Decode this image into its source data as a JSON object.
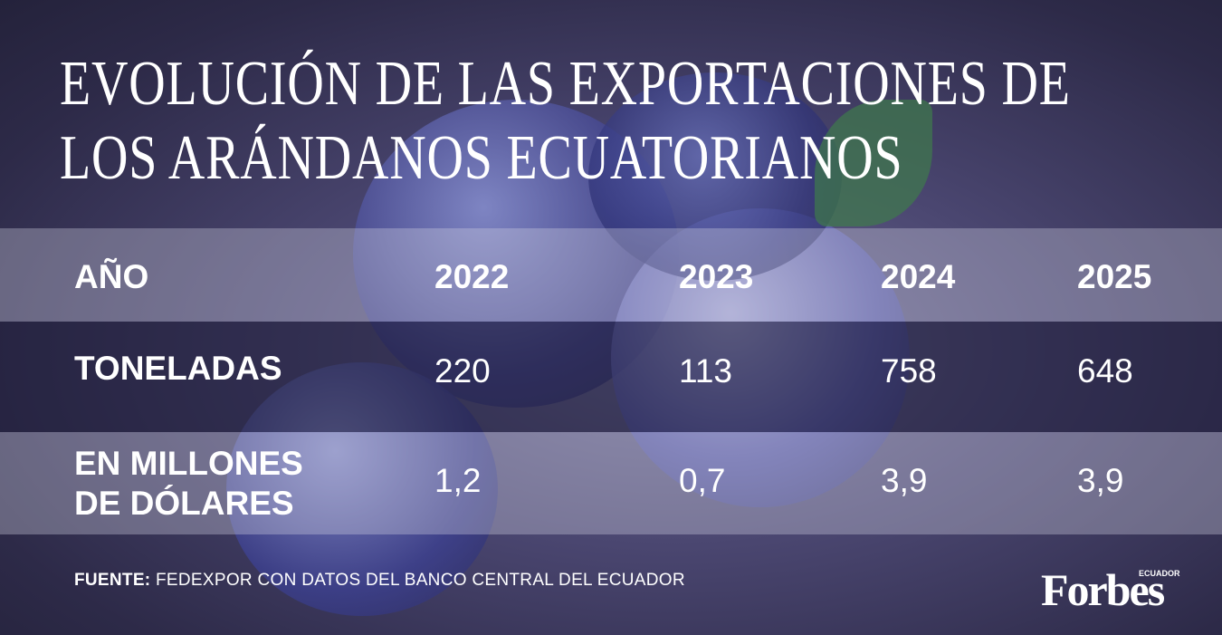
{
  "header": {
    "title_lines": [
      "EVOLUCIÓN DE LAS EXPORTACIONES DE",
      "LOS ARÁNDANOS ECUATORIANOS"
    ]
  },
  "table": {
    "columns": [
      "AÑO",
      "2022",
      "2023",
      "2024",
      "2025"
    ],
    "rows": [
      [
        "TONELADAS",
        "220",
        "113",
        "758",
        "648"
      ],
      [
        "EN MILLONES DE DÓLARES",
        "1,2",
        "0,7",
        "3,9",
        "3,9"
      ]
    ]
  },
  "footer": {
    "source_label": "FUENTE:",
    "source": "FEDEXPOR CON DATOS DEL BANCO CENTRAL DEL ECUADOR"
  },
  "logo": {
    "brand": "Forbes",
    "edition": "ECUADOR"
  }
}
